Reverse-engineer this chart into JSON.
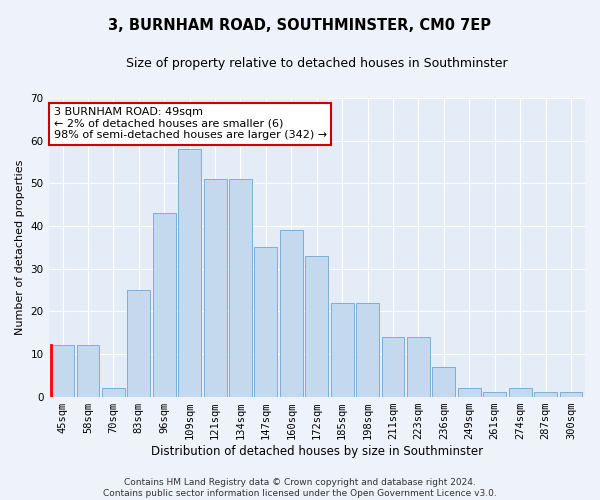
{
  "title": "3, BURNHAM ROAD, SOUTHMINSTER, CM0 7EP",
  "subtitle": "Size of property relative to detached houses in Southminster",
  "xlabel": "Distribution of detached houses by size in Southminster",
  "ylabel": "Number of detached properties",
  "categories": [
    "45sqm",
    "58sqm",
    "70sqm",
    "83sqm",
    "96sqm",
    "109sqm",
    "121sqm",
    "134sqm",
    "147sqm",
    "160sqm",
    "172sqm",
    "185sqm",
    "198sqm",
    "211sqm",
    "223sqm",
    "236sqm",
    "249sqm",
    "261sqm",
    "274sqm",
    "287sqm",
    "300sqm"
  ],
  "values": [
    12,
    12,
    2,
    25,
    43,
    58,
    51,
    51,
    35,
    39,
    33,
    22,
    22,
    14,
    14,
    7,
    2,
    1,
    2,
    1,
    1
  ],
  "bar_color": "#c5d9ee",
  "bar_edgecolor": "#7bafd4",
  "annotation_line1": "3 BURNHAM ROAD: 49sqm",
  "annotation_line2": "← 2% of detached houses are smaller (6)",
  "annotation_line3": "98% of semi-detached houses are larger (342) →",
  "annotation_box_edgecolor": "#cc0000",
  "annotation_box_facecolor": "#ffffff",
  "ylim": [
    0,
    70
  ],
  "yticks": [
    0,
    10,
    20,
    30,
    40,
    50,
    60,
    70
  ],
  "footer_line1": "Contains HM Land Registry data © Crown copyright and database right 2024.",
  "footer_line2": "Contains public sector information licensed under the Open Government Licence v3.0.",
  "background_color": "#eef2fa",
  "plot_bg_color": "#e4ecf7",
  "grid_color": "#ffffff",
  "title_fontsize": 10.5,
  "subtitle_fontsize": 9,
  "xlabel_fontsize": 8.5,
  "ylabel_fontsize": 8,
  "tick_fontsize": 7.5,
  "annotation_fontsize": 8,
  "footer_fontsize": 6.5
}
